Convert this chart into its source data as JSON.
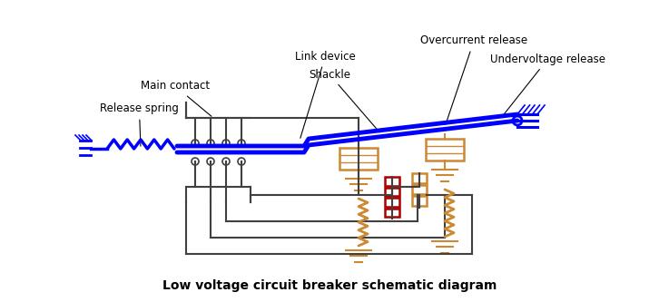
{
  "title": "Low voltage circuit breaker schematic diagram",
  "title_fontsize": 10,
  "bg_color": "#ffffff",
  "blue": "#0000ff",
  "dark": "#404040",
  "orange": "#cc8833",
  "red": "#aa0000",
  "label_fontsize": 8.5,
  "labels": {
    "main_contact": "Main contact",
    "release_spring": "Release spring",
    "link_device": "Link device",
    "shackle": "Shackle",
    "overcurrent": "Overcurrent release",
    "undervoltage": "Undervoltage release"
  },
  "xlim": [
    0,
    726
  ],
  "ylim": [
    0,
    333
  ]
}
